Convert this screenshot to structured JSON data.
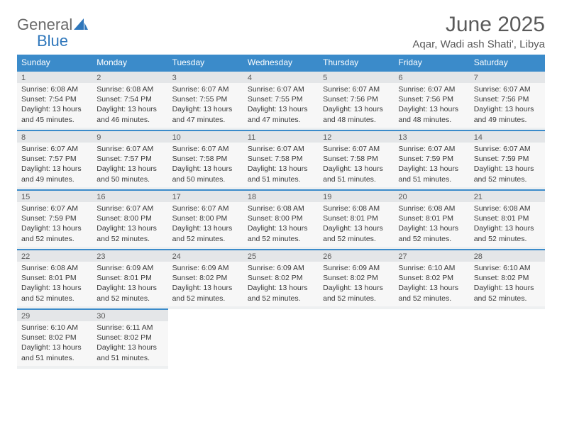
{
  "logo": {
    "text_general": "General",
    "text_blue": "Blue",
    "icon_color": "#2f77bb"
  },
  "header": {
    "month_title": "June 2025",
    "location": "Aqar, Wadi ash Shati', Libya"
  },
  "colors": {
    "header_bg": "#3b8bca",
    "header_text": "#ffffff",
    "cell_border": "#3b8bca",
    "daynum_bg": "#e4e6e8",
    "content_bg": "#f7f7f7",
    "text": "#3a3a3a"
  },
  "day_headers": [
    "Sunday",
    "Monday",
    "Tuesday",
    "Wednesday",
    "Thursday",
    "Friday",
    "Saturday"
  ],
  "weeks": [
    [
      {
        "num": "1",
        "sunrise": "Sunrise: 6:08 AM",
        "sunset": "Sunset: 7:54 PM",
        "daylight1": "Daylight: 13 hours",
        "daylight2": "and 45 minutes."
      },
      {
        "num": "2",
        "sunrise": "Sunrise: 6:08 AM",
        "sunset": "Sunset: 7:54 PM",
        "daylight1": "Daylight: 13 hours",
        "daylight2": "and 46 minutes."
      },
      {
        "num": "3",
        "sunrise": "Sunrise: 6:07 AM",
        "sunset": "Sunset: 7:55 PM",
        "daylight1": "Daylight: 13 hours",
        "daylight2": "and 47 minutes."
      },
      {
        "num": "4",
        "sunrise": "Sunrise: 6:07 AM",
        "sunset": "Sunset: 7:55 PM",
        "daylight1": "Daylight: 13 hours",
        "daylight2": "and 47 minutes."
      },
      {
        "num": "5",
        "sunrise": "Sunrise: 6:07 AM",
        "sunset": "Sunset: 7:56 PM",
        "daylight1": "Daylight: 13 hours",
        "daylight2": "and 48 minutes."
      },
      {
        "num": "6",
        "sunrise": "Sunrise: 6:07 AM",
        "sunset": "Sunset: 7:56 PM",
        "daylight1": "Daylight: 13 hours",
        "daylight2": "and 48 minutes."
      },
      {
        "num": "7",
        "sunrise": "Sunrise: 6:07 AM",
        "sunset": "Sunset: 7:56 PM",
        "daylight1": "Daylight: 13 hours",
        "daylight2": "and 49 minutes."
      }
    ],
    [
      {
        "num": "8",
        "sunrise": "Sunrise: 6:07 AM",
        "sunset": "Sunset: 7:57 PM",
        "daylight1": "Daylight: 13 hours",
        "daylight2": "and 49 minutes."
      },
      {
        "num": "9",
        "sunrise": "Sunrise: 6:07 AM",
        "sunset": "Sunset: 7:57 PM",
        "daylight1": "Daylight: 13 hours",
        "daylight2": "and 50 minutes."
      },
      {
        "num": "10",
        "sunrise": "Sunrise: 6:07 AM",
        "sunset": "Sunset: 7:58 PM",
        "daylight1": "Daylight: 13 hours",
        "daylight2": "and 50 minutes."
      },
      {
        "num": "11",
        "sunrise": "Sunrise: 6:07 AM",
        "sunset": "Sunset: 7:58 PM",
        "daylight1": "Daylight: 13 hours",
        "daylight2": "and 51 minutes."
      },
      {
        "num": "12",
        "sunrise": "Sunrise: 6:07 AM",
        "sunset": "Sunset: 7:58 PM",
        "daylight1": "Daylight: 13 hours",
        "daylight2": "and 51 minutes."
      },
      {
        "num": "13",
        "sunrise": "Sunrise: 6:07 AM",
        "sunset": "Sunset: 7:59 PM",
        "daylight1": "Daylight: 13 hours",
        "daylight2": "and 51 minutes."
      },
      {
        "num": "14",
        "sunrise": "Sunrise: 6:07 AM",
        "sunset": "Sunset: 7:59 PM",
        "daylight1": "Daylight: 13 hours",
        "daylight2": "and 52 minutes."
      }
    ],
    [
      {
        "num": "15",
        "sunrise": "Sunrise: 6:07 AM",
        "sunset": "Sunset: 7:59 PM",
        "daylight1": "Daylight: 13 hours",
        "daylight2": "and 52 minutes."
      },
      {
        "num": "16",
        "sunrise": "Sunrise: 6:07 AM",
        "sunset": "Sunset: 8:00 PM",
        "daylight1": "Daylight: 13 hours",
        "daylight2": "and 52 minutes."
      },
      {
        "num": "17",
        "sunrise": "Sunrise: 6:07 AM",
        "sunset": "Sunset: 8:00 PM",
        "daylight1": "Daylight: 13 hours",
        "daylight2": "and 52 minutes."
      },
      {
        "num": "18",
        "sunrise": "Sunrise: 6:08 AM",
        "sunset": "Sunset: 8:00 PM",
        "daylight1": "Daylight: 13 hours",
        "daylight2": "and 52 minutes."
      },
      {
        "num": "19",
        "sunrise": "Sunrise: 6:08 AM",
        "sunset": "Sunset: 8:01 PM",
        "daylight1": "Daylight: 13 hours",
        "daylight2": "and 52 minutes."
      },
      {
        "num": "20",
        "sunrise": "Sunrise: 6:08 AM",
        "sunset": "Sunset: 8:01 PM",
        "daylight1": "Daylight: 13 hours",
        "daylight2": "and 52 minutes."
      },
      {
        "num": "21",
        "sunrise": "Sunrise: 6:08 AM",
        "sunset": "Sunset: 8:01 PM",
        "daylight1": "Daylight: 13 hours",
        "daylight2": "and 52 minutes."
      }
    ],
    [
      {
        "num": "22",
        "sunrise": "Sunrise: 6:08 AM",
        "sunset": "Sunset: 8:01 PM",
        "daylight1": "Daylight: 13 hours",
        "daylight2": "and 52 minutes."
      },
      {
        "num": "23",
        "sunrise": "Sunrise: 6:09 AM",
        "sunset": "Sunset: 8:01 PM",
        "daylight1": "Daylight: 13 hours",
        "daylight2": "and 52 minutes."
      },
      {
        "num": "24",
        "sunrise": "Sunrise: 6:09 AM",
        "sunset": "Sunset: 8:02 PM",
        "daylight1": "Daylight: 13 hours",
        "daylight2": "and 52 minutes."
      },
      {
        "num": "25",
        "sunrise": "Sunrise: 6:09 AM",
        "sunset": "Sunset: 8:02 PM",
        "daylight1": "Daylight: 13 hours",
        "daylight2": "and 52 minutes."
      },
      {
        "num": "26",
        "sunrise": "Sunrise: 6:09 AM",
        "sunset": "Sunset: 8:02 PM",
        "daylight1": "Daylight: 13 hours",
        "daylight2": "and 52 minutes."
      },
      {
        "num": "27",
        "sunrise": "Sunrise: 6:10 AM",
        "sunset": "Sunset: 8:02 PM",
        "daylight1": "Daylight: 13 hours",
        "daylight2": "and 52 minutes."
      },
      {
        "num": "28",
        "sunrise": "Sunrise: 6:10 AM",
        "sunset": "Sunset: 8:02 PM",
        "daylight1": "Daylight: 13 hours",
        "daylight2": "and 52 minutes."
      }
    ],
    [
      {
        "num": "29",
        "sunrise": "Sunrise: 6:10 AM",
        "sunset": "Sunset: 8:02 PM",
        "daylight1": "Daylight: 13 hours",
        "daylight2": "and 51 minutes."
      },
      {
        "num": "30",
        "sunrise": "Sunrise: 6:11 AM",
        "sunset": "Sunset: 8:02 PM",
        "daylight1": "Daylight: 13 hours",
        "daylight2": "and 51 minutes."
      },
      null,
      null,
      null,
      null,
      null
    ]
  ]
}
